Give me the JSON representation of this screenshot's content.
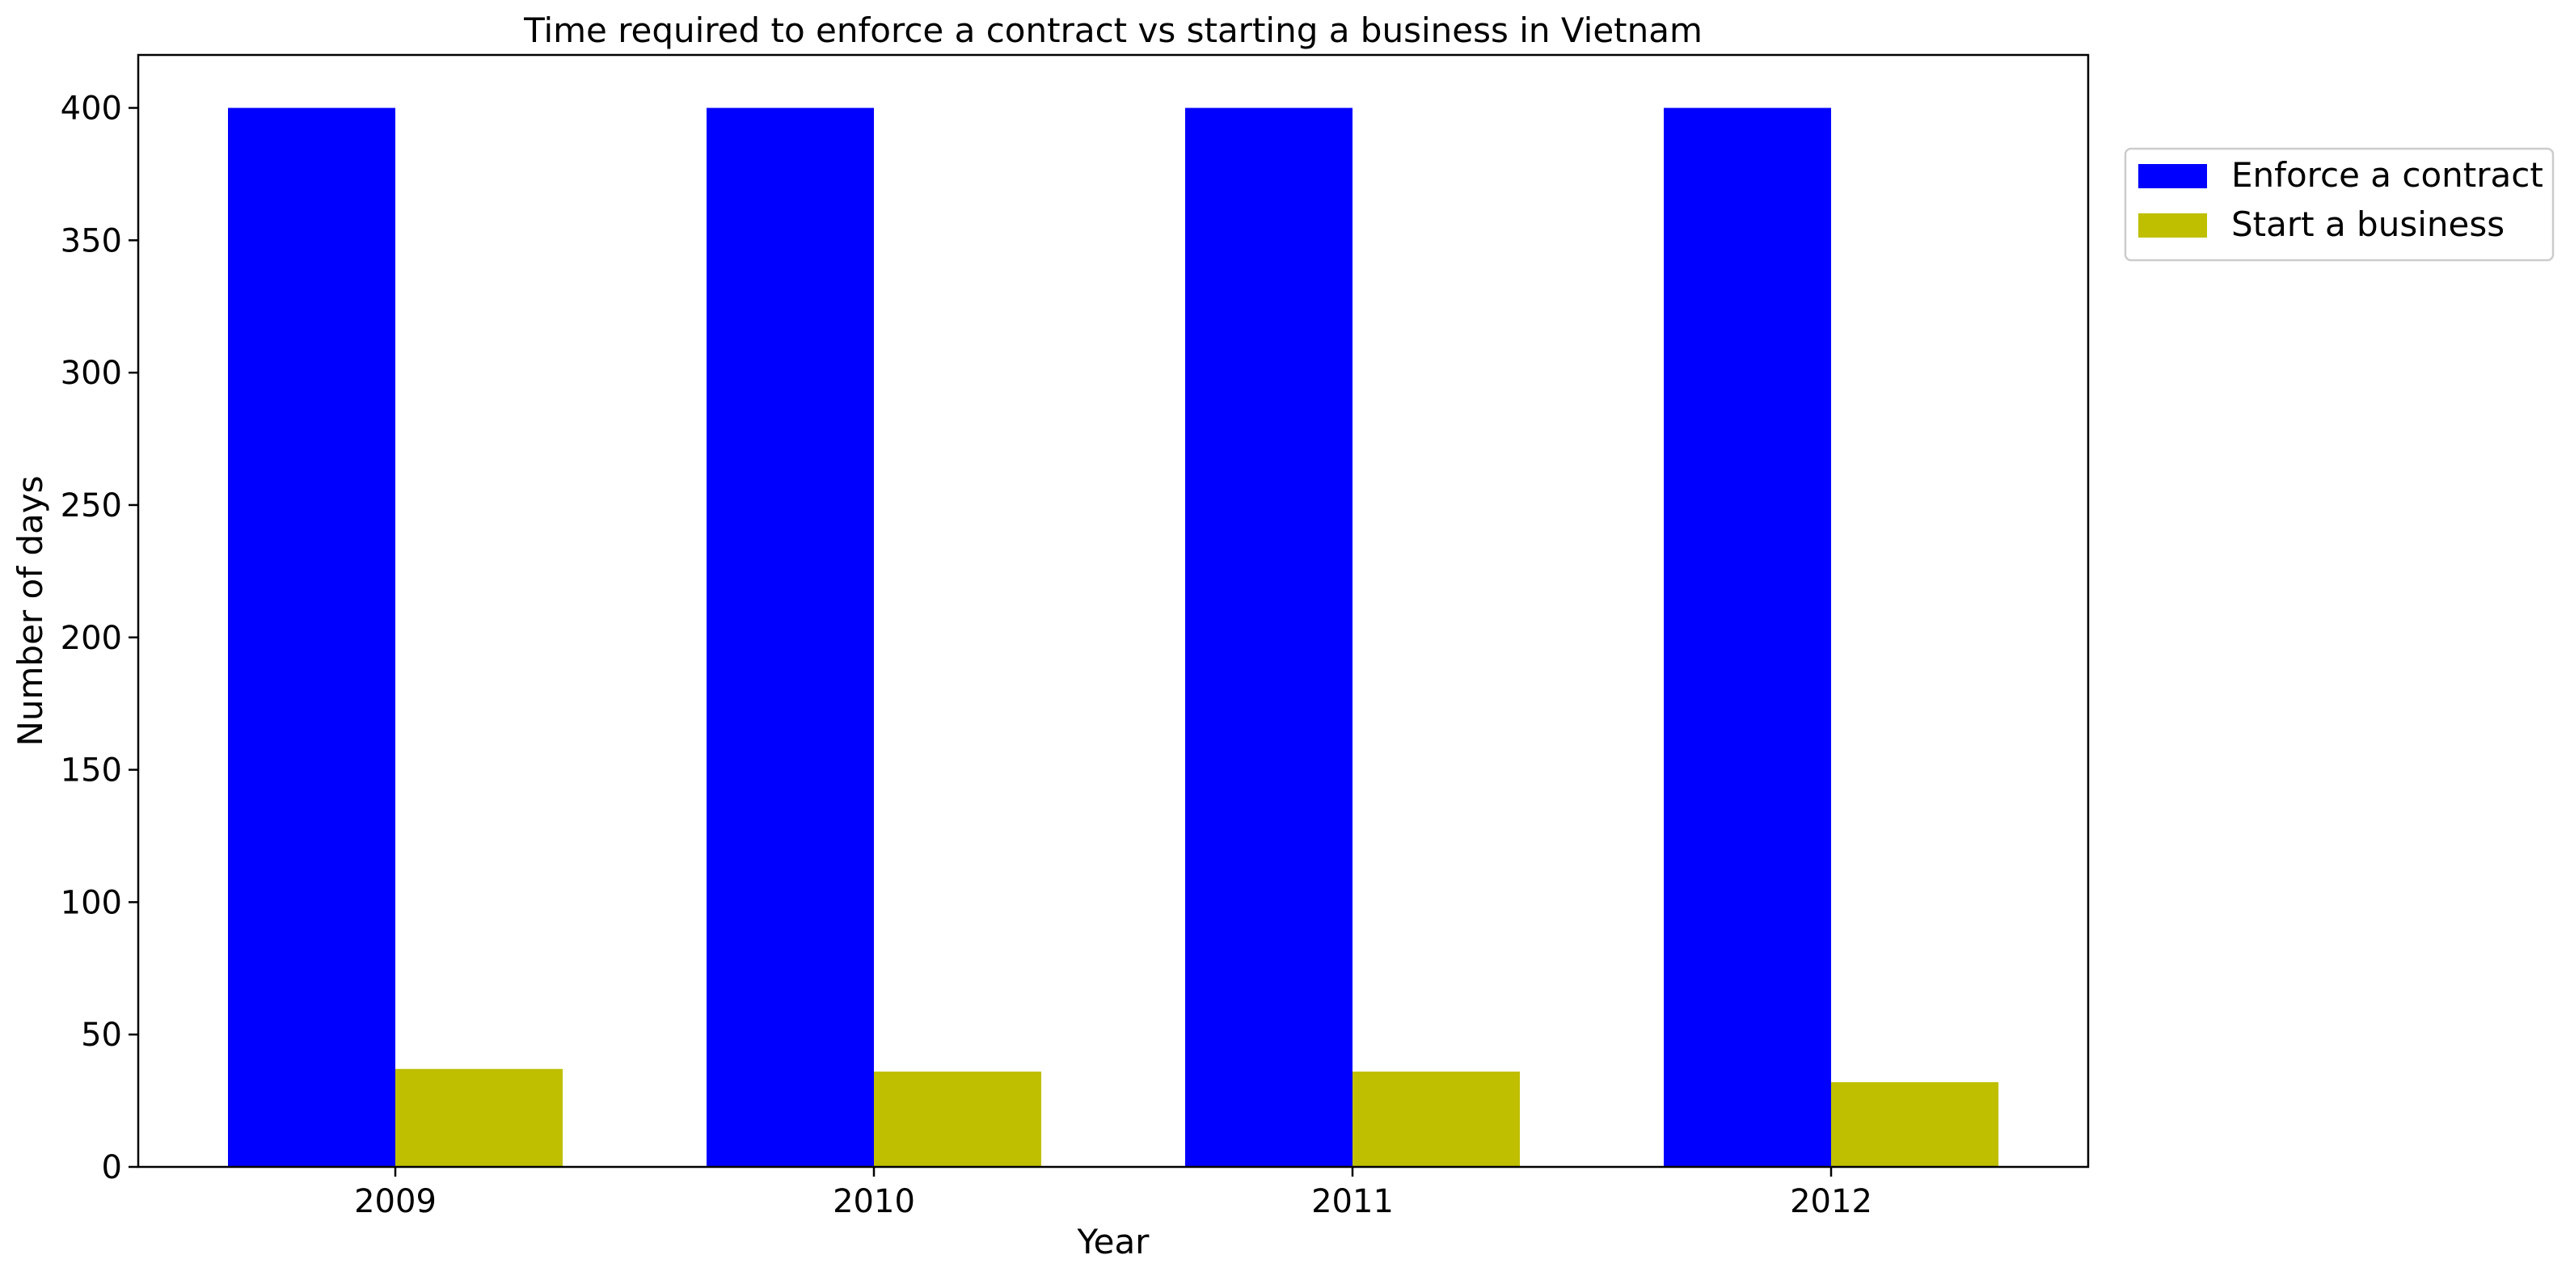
{
  "chart_data": {
    "type": "bar",
    "title": "Time required to enforce a contract vs starting a business in Vietnam",
    "xlabel": "Year",
    "ylabel": "Number of days",
    "categories": [
      "2009",
      "2010",
      "2011",
      "2012"
    ],
    "series": [
      {
        "name": "Enforce a contract",
        "color": "#0000ff",
        "values": [
          400,
          400,
          400,
          400
        ]
      },
      {
        "name": "Start a business",
        "color": "#bfbf00",
        "values": [
          37,
          36,
          36,
          32
        ]
      }
    ],
    "ylim": [
      0,
      420
    ],
    "yticks": [
      0,
      50,
      100,
      150,
      200,
      250,
      300,
      350,
      400
    ],
    "grid": false,
    "legend_position": "outside-top-right"
  }
}
